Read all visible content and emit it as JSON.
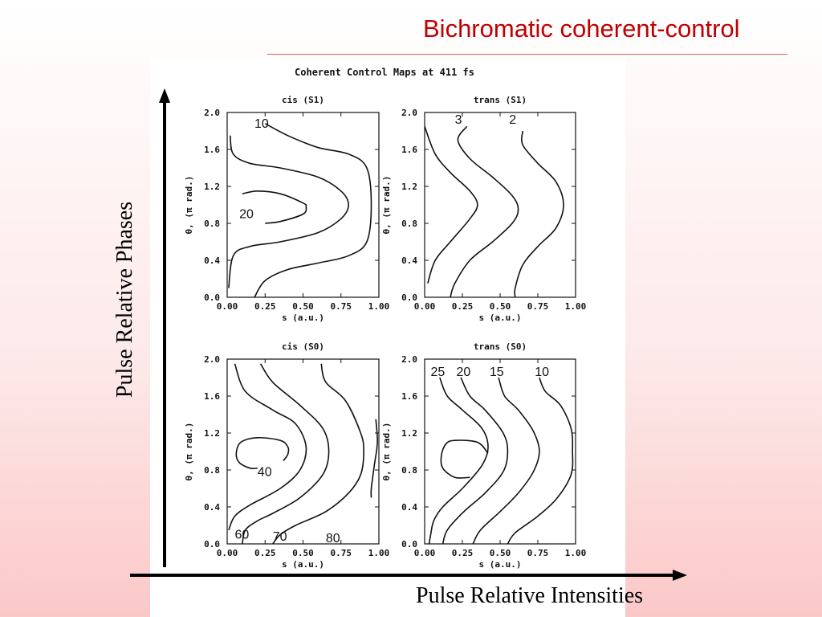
{
  "slide": {
    "title": "Bichromatic coherent-control",
    "y_axis_caption": "Pulse Relative Phases",
    "x_axis_caption": "Pulse Relative Intensities",
    "colors": {
      "title": "#c00000",
      "rule": "#e06060",
      "background_bottom": "#fbc8c8"
    }
  },
  "chart_data": {
    "type": "contour",
    "title": "Coherent Control Maps at 411 fs",
    "panels": [
      {
        "title": "cis (S1)",
        "xlabel": "s (a.u.)",
        "ylabel": "θ, (π rad.)",
        "xlim": [
          0,
          1
        ],
        "ylim": [
          0,
          2
        ],
        "xticks": [
          "0.00",
          "0.25",
          "0.50",
          "0.75",
          "1.00"
        ],
        "yticks": [
          "0.0",
          "0.4",
          "0.8",
          "1.2",
          "1.6",
          "2.0"
        ],
        "contours": [
          {
            "level": "10",
            "label_pos": [
              0.18,
              1.88
            ],
            "points": [
              [
                0.02,
                1.75
              ],
              [
                0.04,
                1.55
              ],
              [
                0.15,
                1.45
              ],
              [
                0.35,
                1.4
              ],
              [
                0.6,
                1.3
              ],
              [
                0.75,
                1.15
              ],
              [
                0.8,
                1.0
              ],
              [
                0.75,
                0.85
              ],
              [
                0.6,
                0.7
              ],
              [
                0.35,
                0.6
              ],
              [
                0.15,
                0.55
              ],
              [
                0.04,
                0.45
              ],
              [
                0.01,
                0.1
              ]
            ]
          },
          {
            "level": "",
            "points": [
              [
                0.25,
                1.88
              ],
              [
                0.4,
                1.75
              ],
              [
                0.6,
                1.62
              ],
              [
                0.8,
                1.55
              ],
              [
                0.92,
                1.4
              ],
              [
                0.95,
                1.0
              ],
              [
                0.92,
                0.6
              ],
              [
                0.8,
                0.45
              ],
              [
                0.6,
                0.37
              ],
              [
                0.4,
                0.3
              ],
              [
                0.25,
                0.18
              ],
              [
                0.18,
                0.0
              ]
            ]
          },
          {
            "level": "20",
            "label_pos": [
              0.08,
              0.9
            ],
            "closed": false,
            "points": [
              [
                0.1,
                1.12
              ],
              [
                0.2,
                1.15
              ],
              [
                0.35,
                1.12
              ],
              [
                0.5,
                1.02
              ],
              [
                0.52,
                0.98
              ],
              [
                0.5,
                0.9
              ],
              [
                0.35,
                0.82
              ],
              [
                0.25,
                0.8
              ]
            ]
          }
        ]
      },
      {
        "title": "trans (S1)",
        "xlabel": "s (a.u.)",
        "ylabel": "θ, (π rad.)",
        "xlim": [
          0,
          1
        ],
        "ylim": [
          0,
          2
        ],
        "xticks": [
          "0.00",
          "0.25",
          "0.50",
          "0.75",
          "1.00"
        ],
        "yticks": [
          "0.0",
          "0.4",
          "0.8",
          "1.2",
          "1.6",
          "2.0"
        ],
        "contours": [
          {
            "level": "3",
            "label_pos": [
              0.2,
              1.92
            ],
            "points": [
              [
                0.28,
                1.85
              ],
              [
                0.22,
                1.7
              ],
              [
                0.3,
                1.5
              ],
              [
                0.45,
                1.3
              ],
              [
                0.58,
                1.1
              ],
              [
                0.62,
                0.95
              ],
              [
                0.58,
                0.8
              ],
              [
                0.45,
                0.6
              ],
              [
                0.3,
                0.4
              ],
              [
                0.2,
                0.15
              ],
              [
                0.17,
                0.0
              ]
            ]
          },
          {
            "level": "2",
            "label_pos": [
              0.56,
              1.92
            ],
            "points": [
              [
                0.65,
                1.8
              ],
              [
                0.65,
                1.65
              ],
              [
                0.75,
                1.45
              ],
              [
                0.87,
                1.25
              ],
              [
                0.92,
                1.0
              ],
              [
                0.87,
                0.75
              ],
              [
                0.75,
                0.55
              ],
              [
                0.65,
                0.35
              ],
              [
                0.6,
                0.1
              ],
              [
                0.6,
                0.0
              ]
            ]
          },
          {
            "level": "",
            "points": [
              [
                0.0,
                1.85
              ],
              [
                0.07,
                1.55
              ],
              [
                0.17,
                1.35
              ],
              [
                0.3,
                1.15
              ],
              [
                0.35,
                1.0
              ],
              [
                0.3,
                0.85
              ],
              [
                0.17,
                0.6
              ],
              [
                0.07,
                0.4
              ],
              [
                0.02,
                0.15
              ]
            ]
          }
        ]
      },
      {
        "title": "cis (S0)",
        "xlabel": "s (a.u.)",
        "ylabel": "θ, (π rad.)",
        "xlim": [
          0,
          1
        ],
        "ylim": [
          0,
          2
        ],
        "xticks": [
          "0.00",
          "0.25",
          "0.50",
          "0.75",
          "1.00"
        ],
        "yticks": [
          "0.0",
          "0.4",
          "0.8",
          "1.2",
          "1.6",
          "2.0"
        ],
        "contours": [
          {
            "level": "40",
            "label_pos": [
              0.2,
              0.78
            ],
            "points": [
              [
                0.2,
                0.82
              ],
              [
                0.15,
                0.82
              ],
              [
                0.08,
                0.88
              ],
              [
                0.06,
                0.98
              ],
              [
                0.09,
                1.1
              ],
              [
                0.2,
                1.15
              ],
              [
                0.35,
                1.12
              ],
              [
                0.4,
                1.05
              ],
              [
                0.4,
                0.97
              ],
              [
                0.37,
                0.9
              ]
            ]
          },
          {
            "level": "60",
            "label_pos": [
              0.05,
              0.1
            ],
            "points": [
              [
                0.05,
                1.95
              ],
              [
                0.12,
                1.65
              ],
              [
                0.3,
                1.45
              ],
              [
                0.45,
                1.3
              ],
              [
                0.52,
                1.05
              ],
              [
                0.48,
                0.8
              ],
              [
                0.35,
                0.6
              ],
              [
                0.15,
                0.42
              ],
              [
                0.05,
                0.3
              ],
              [
                0.01,
                0.15
              ]
            ]
          },
          {
            "level": "70",
            "label_pos": [
              0.3,
              0.08
            ],
            "points": [
              [
                0.22,
                1.95
              ],
              [
                0.3,
                1.75
              ],
              [
                0.48,
                1.5
              ],
              [
                0.63,
                1.25
              ],
              [
                0.67,
                1.0
              ],
              [
                0.63,
                0.75
              ],
              [
                0.48,
                0.5
              ],
              [
                0.3,
                0.33
              ],
              [
                0.2,
                0.25
              ],
              [
                0.12,
                0.15
              ],
              [
                0.1,
                0.0
              ]
            ]
          },
          {
            "level": "80",
            "label_pos": [
              0.65,
              0.06
            ],
            "points": [
              [
                0.62,
                1.95
              ],
              [
                0.65,
                1.75
              ],
              [
                0.78,
                1.55
              ],
              [
                0.88,
                1.2
              ],
              [
                0.9,
                1.0
              ],
              [
                0.88,
                0.75
              ],
              [
                0.8,
                0.55
              ],
              [
                0.65,
                0.35
              ],
              [
                0.45,
                0.2
              ],
              [
                0.35,
                0.1
              ],
              [
                0.3,
                0.0
              ]
            ]
          },
          {
            "level": "",
            "points": [
              [
                0.98,
                1.35
              ],
              [
                0.99,
                1.1
              ],
              [
                0.97,
                0.85
              ],
              [
                0.95,
                0.6
              ],
              [
                0.95,
                0.5
              ]
            ]
          }
        ]
      },
      {
        "title": "trans (S0)",
        "xlabel": "s (a.u.)",
        "ylabel": "θ, (π rad.)",
        "xlim": [
          0,
          1
        ],
        "ylim": [
          0,
          2
        ],
        "xticks": [
          "0.00",
          "0.25",
          "0.50",
          "0.75",
          "1.00"
        ],
        "yticks": [
          "0.0",
          "0.4",
          "0.8",
          "1.2",
          "1.6",
          "2.0"
        ],
        "contours": [
          {
            "level": "25",
            "label_pos": [
              0.04,
              1.86
            ],
            "points": [
              [
                0.1,
                1.8
              ],
              [
                0.15,
                1.6
              ],
              [
                0.25,
                1.45
              ],
              [
                0.38,
                1.25
              ],
              [
                0.42,
                1.05
              ],
              [
                0.38,
                0.85
              ],
              [
                0.25,
                0.6
              ],
              [
                0.12,
                0.4
              ],
              [
                0.06,
                0.25
              ],
              [
                0.04,
                0.1
              ],
              [
                0.03,
                0.0
              ]
            ]
          },
          {
            "level": "20",
            "label_pos": [
              0.21,
              1.86
            ],
            "points": [
              [
                0.24,
                1.8
              ],
              [
                0.3,
                1.6
              ],
              [
                0.4,
                1.45
              ],
              [
                0.52,
                1.2
              ],
              [
                0.55,
                1.0
              ],
              [
                0.52,
                0.78
              ],
              [
                0.4,
                0.55
              ],
              [
                0.26,
                0.35
              ],
              [
                0.15,
                0.15
              ],
              [
                0.12,
                0.0
              ]
            ]
          },
          {
            "level": "15",
            "label_pos": [
              0.43,
              1.86
            ],
            "points": [
              [
                0.49,
                1.8
              ],
              [
                0.53,
                1.6
              ],
              [
                0.62,
                1.45
              ],
              [
                0.72,
                1.22
              ],
              [
                0.76,
                1.0
              ],
              [
                0.72,
                0.78
              ],
              [
                0.62,
                0.55
              ],
              [
                0.5,
                0.35
              ],
              [
                0.37,
                0.15
              ],
              [
                0.32,
                0.0
              ]
            ]
          },
          {
            "level": "10",
            "label_pos": [
              0.73,
              1.86
            ],
            "points": [
              [
                0.76,
                1.8
              ],
              [
                0.8,
                1.65
              ],
              [
                0.9,
                1.5
              ],
              [
                0.97,
                1.25
              ],
              [
                0.98,
                1.0
              ],
              [
                0.97,
                0.75
              ],
              [
                0.88,
                0.5
              ],
              [
                0.75,
                0.3
              ],
              [
                0.6,
                0.12
              ],
              [
                0.55,
                0.0
              ]
            ]
          },
          {
            "level": "",
            "points": [
              [
                0.3,
                0.72
              ],
              [
                0.2,
                0.72
              ],
              [
                0.12,
                0.82
              ],
              [
                0.11,
                0.95
              ],
              [
                0.14,
                1.08
              ],
              [
                0.2,
                1.12
              ],
              [
                0.35,
                1.1
              ],
              [
                0.42,
                0.98
              ]
            ]
          }
        ]
      }
    ]
  }
}
